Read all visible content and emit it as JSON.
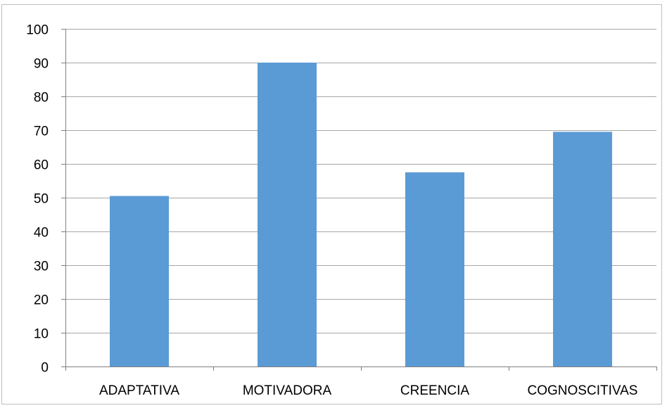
{
  "chart_data": {
    "type": "bar",
    "categories": [
      "ADAPTATIVA",
      "MOTIVADORA",
      "CREENCIA",
      "COGNOSCITIVAS"
    ],
    "values": [
      50.5,
      90,
      57.5,
      69.5
    ],
    "ylim": [
      0,
      100
    ],
    "yticks": [
      0,
      10,
      20,
      30,
      40,
      50,
      60,
      70,
      80,
      90,
      100
    ],
    "grid": true,
    "legend": "none",
    "colors": {
      "bar": "#5b9bd5",
      "grid": "#a6a6a6",
      "axis": "#7f7f7f"
    }
  }
}
